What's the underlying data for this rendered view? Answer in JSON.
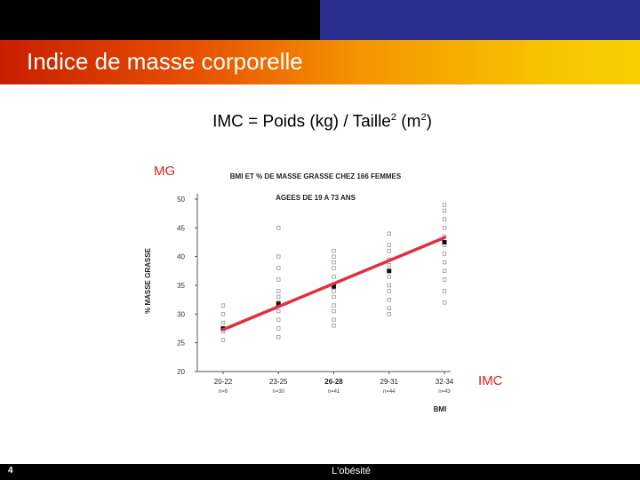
{
  "slide": {
    "title": "Indice de masse corporelle",
    "formula": {
      "left": "IMC = Poids (kg) / Taille",
      "exp": "2",
      "mid": " (m",
      "exp2": "2",
      "end": ")"
    },
    "y_tag": "MG",
    "x_tag": "IMC",
    "page_number": "4",
    "footer_text": "L'obésité"
  },
  "colors": {
    "accent_red": "#e02020",
    "trend_line": "#e03040",
    "header_navy": "#2b2d8f"
  },
  "chart_data": {
    "type": "scatter",
    "title": "BMI ET % DE MASSE GRASSE CHEZ 166 FEMMES",
    "subtitle": "AGEES DE 19 A 73 ANS",
    "xlabel": "BMI",
    "ylabel": "% MASSE GRASSE",
    "ylim": [
      20,
      50
    ],
    "y_ticks": [
      20,
      25,
      30,
      35,
      40,
      45,
      50
    ],
    "categories": [
      "20-22",
      "23-25",
      "26-28",
      "29-31",
      "32-34"
    ],
    "n_labels": [
      "n=6",
      "n=30",
      "n=41",
      "n=44",
      "n=43"
    ],
    "means": [
      27.5,
      31.8,
      34.8,
      37.5,
      42.5
    ],
    "points": [
      [
        25.5,
        27.0,
        28.5,
        30.0,
        31.5
      ],
      [
        26.0,
        27.5,
        29.0,
        30.5,
        32.0,
        33.0,
        34.0,
        36.0,
        38.0,
        40.0,
        45.0
      ],
      [
        28.0,
        29.0,
        30.5,
        31.5,
        33.0,
        34.0,
        35.0,
        36.5,
        38.0,
        39.0,
        40.0,
        41.0
      ],
      [
        30.0,
        31.0,
        32.5,
        34.0,
        35.0,
        36.5,
        37.5,
        38.5,
        39.5,
        41.0,
        42.0,
        44.0
      ],
      [
        32.0,
        34.0,
        36.0,
        37.5,
        39.0,
        40.5,
        42.0,
        43.5,
        45.0,
        46.5,
        48.0,
        49.0
      ]
    ],
    "trend": {
      "from": [
        0,
        27.3
      ],
      "to": [
        4,
        43.3
      ]
    },
    "grid": false,
    "legend": "none"
  }
}
